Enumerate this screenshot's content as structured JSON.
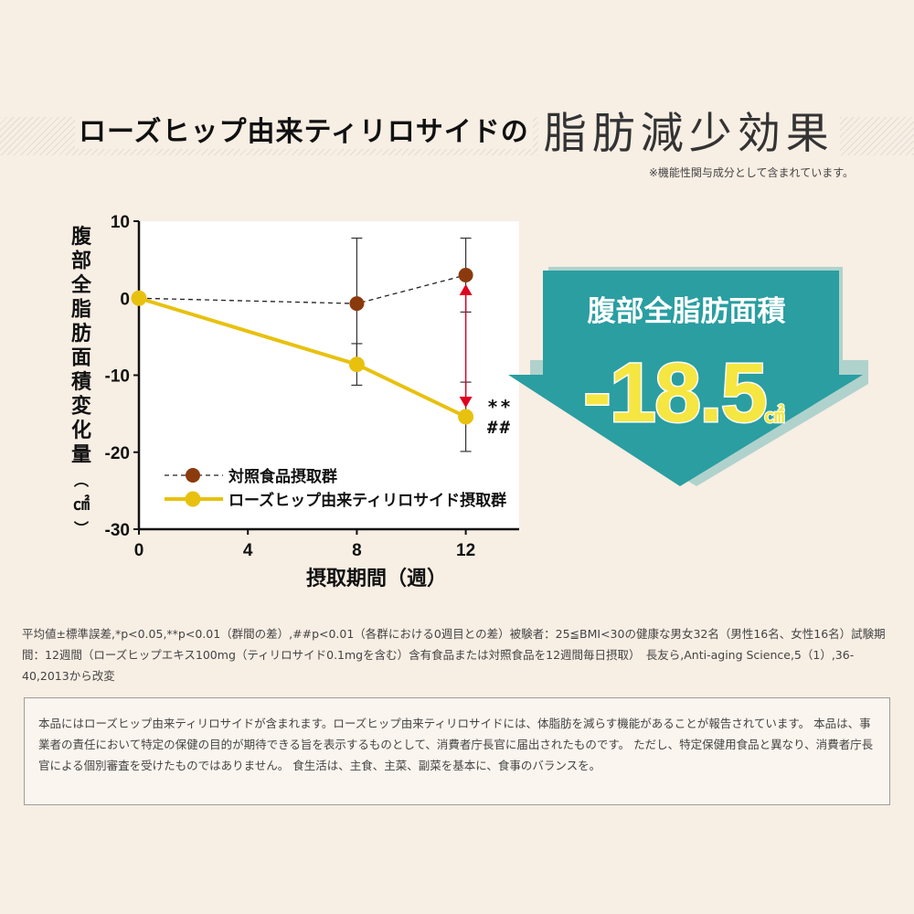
{
  "header": {
    "title_main": "ローズヒップ由来ティリロサイドの",
    "title_accent": "脂肪減少効果",
    "note": "※機能性関与成分として含まれています。"
  },
  "colors": {
    "background": "#f7eee4",
    "control_series": "#8b3a0d",
    "rosehip_series": "#e8c10f",
    "arrow_teal": "#2a9ea1",
    "accent_red": "#e00020"
  },
  "chart_data": {
    "type": "line",
    "ylabel": "腹部全脂肪面積変化量（㎠）",
    "xlabel": "摂取期間（週）",
    "x": [
      0,
      8,
      12
    ],
    "xticks": [
      "0",
      "4",
      "8",
      "12"
    ],
    "yticks": [
      "10",
      "0",
      "-10",
      "-20",
      "-30"
    ],
    "xlim": [
      0,
      13.5
    ],
    "ylim": [
      -30,
      10
    ],
    "series": [
      {
        "name": "対照食品摂取群",
        "values": [
          0,
          -0.7,
          3.0
        ],
        "error": [
          0,
          8.5,
          4.8
        ],
        "style": "dashed"
      },
      {
        "name": "ローズヒップ由来ティリロサイド摂取群",
        "values": [
          0,
          -8.6,
          -15.4
        ],
        "error": [
          0,
          2.7,
          4.5
        ],
        "style": "solid"
      }
    ],
    "significance": [
      "**",
      "##"
    ],
    "legend_position": "bottom-left"
  },
  "callout": {
    "label": "腹部全脂肪面積",
    "value": "-18.5",
    "unit": "㎠"
  },
  "footnote": "平均値±標準誤差,*p<0.05,**p<0.01（群間の差）,##p<0.01（各群における0週目との差）被験者：25≦BMI<30の健康な男女32名（男性16名、女性16名）試験期間：12週間（ローズヒップエキス100mg（ティリロサイド0.1mgを含む）含有食品または対照食品を12週間毎日摂取）　長友ら,Anti-aging Science,5（1）,36-40,2013から改変",
  "disclaimer": "本品にはローズヒップ由来ティリロサイドが含まれます。ローズヒップ由来ティリロサイドには、体脂肪を減らす機能があることが報告されています。 本品は、事業者の責任において特定の保健の目的が期待できる旨を表示するものとして、消費者庁長官に届出されたものです。 ただし、特定保健用食品と異なり、消費者庁長官による個別審査を受けたものではありません。 食生活は、主食、主菜、副菜を基本に、食事のバランスを。"
}
